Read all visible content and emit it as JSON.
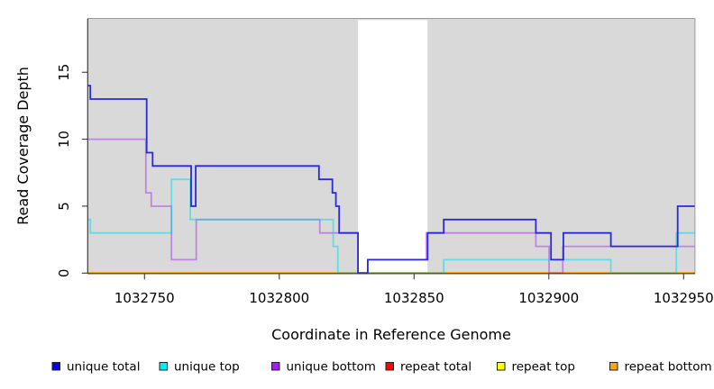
{
  "chart_data": {
    "type": "line",
    "subtype": "step-coverage-plot",
    "title": "",
    "xlabel": "Coordinate in Reference Genome",
    "ylabel": "Read Coverage Depth",
    "x_ticks": [
      1032750,
      1032800,
      1032850,
      1032900,
      1032950
    ],
    "y_ticks": [
      0,
      5,
      10,
      15
    ],
    "x_range": [
      1032728.9,
      1032954.2
    ],
    "y_range": [
      0,
      19
    ],
    "grid": "off",
    "plot_background": "#d9d9d9",
    "masked_region": {
      "start": 1032829.2,
      "end": 1032855,
      "color": "#ffffff"
    },
    "series": [
      {
        "name": "unique total",
        "legend_color": "#0000ee",
        "line_color": "#2929de",
        "line_opacity": 1,
        "line_width": 1.8,
        "steps": [
          [
            1032728.9,
            14
          ],
          [
            1032729.9,
            13
          ],
          [
            1032750.8,
            9
          ],
          [
            1032753,
            8
          ],
          [
            1032767.3,
            5
          ],
          [
            1032769,
            8
          ],
          [
            1032814.7,
            7
          ],
          [
            1032819.7,
            6
          ],
          [
            1032821,
            5
          ],
          [
            1032822.2,
            3
          ],
          [
            1032829.2,
            0
          ],
          [
            1032832.8,
            1
          ],
          [
            1032855,
            3
          ],
          [
            1032861,
            4
          ],
          [
            1032895.2,
            3
          ],
          [
            1032900.8,
            1
          ],
          [
            1032905.4,
            3
          ],
          [
            1032923,
            2
          ],
          [
            1032947.8,
            5
          ]
        ]
      },
      {
        "name": "unique top",
        "legend_color": "#00eeee",
        "line_color": "#00dde8",
        "line_opacity": 0.55,
        "line_width": 1.8,
        "steps": [
          [
            1032728.9,
            4
          ],
          [
            1032729.9,
            3
          ],
          [
            1032760,
            7
          ],
          [
            1032767,
            4
          ],
          [
            1032820,
            2
          ],
          [
            1032821.7,
            0
          ],
          [
            1032861,
            1
          ],
          [
            1032923,
            0
          ],
          [
            1032947.3,
            3
          ]
        ]
      },
      {
        "name": "unique bottom",
        "legend_color": "#a020f0",
        "line_color": "#a020f0",
        "line_opacity": 0.45,
        "line_width": 1.8,
        "steps": [
          [
            1032728.9,
            10
          ],
          [
            1032750.5,
            6
          ],
          [
            1032752.5,
            5
          ],
          [
            1032760,
            1
          ],
          [
            1032769.2,
            4
          ],
          [
            1032815,
            3
          ],
          [
            1032829.2,
            0
          ],
          [
            1032832.8,
            1
          ],
          [
            1032854.5,
            3
          ],
          [
            1032895.2,
            2
          ],
          [
            1032900.1,
            0
          ],
          [
            1032905.2,
            2
          ]
        ]
      },
      {
        "name": "repeat total",
        "legend_color": "#ff0000",
        "line_color": "#ff0000",
        "line_opacity": 1,
        "line_width": 1.8,
        "steps": [
          [
            1032728.9,
            0
          ]
        ]
      },
      {
        "name": "repeat top",
        "legend_color": "#ffff00",
        "line_color": "#ffff00",
        "line_opacity": 1,
        "line_width": 1.8,
        "steps": [
          [
            1032728.9,
            0
          ]
        ]
      },
      {
        "name": "repeat bottom",
        "legend_color": "#ffa500",
        "line_color": "#ff9d0a",
        "line_opacity": 1,
        "line_width": 2.2,
        "steps": [
          [
            1032728.9,
            0
          ]
        ]
      }
    ],
    "draw_order": [
      "repeat total",
      "repeat top",
      "repeat bottom",
      "unique bottom",
      "unique top",
      "unique total"
    ],
    "legend": {
      "position": "bottom",
      "items": [
        {
          "label": "unique total",
          "color": "#0000ee"
        },
        {
          "label": "unique top",
          "color": "#00eeee"
        },
        {
          "label": "unique bottom",
          "color": "#a020f0"
        },
        {
          "label": "repeat total",
          "color": "#ff0000"
        },
        {
          "label": "repeat top",
          "color": "#ffff00"
        },
        {
          "label": "repeat bottom",
          "color": "#ffa500"
        }
      ]
    }
  }
}
